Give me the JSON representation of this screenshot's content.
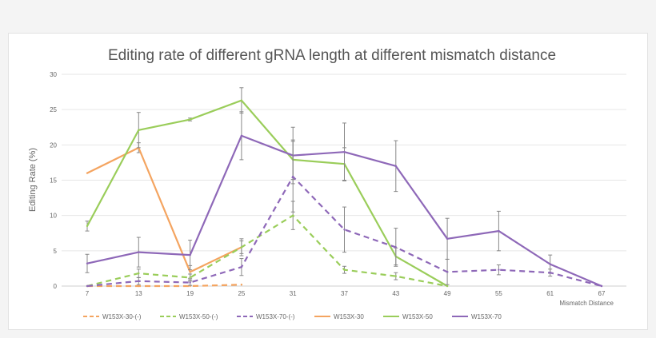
{
  "chart_data": {
    "type": "line",
    "title": "Editing rate of different gRNA length at different mismatch distance",
    "xlabel": "Mismatch Distance",
    "ylabel": "Editing Rate (%)",
    "ylim": [
      0,
      30
    ],
    "yticks": [
      "0",
      "5",
      "10",
      "15",
      "20",
      "25",
      "30"
    ],
    "categories": [
      "7",
      "13",
      "19",
      "25",
      "31",
      "37",
      "43",
      "49",
      "55",
      "61",
      "67"
    ],
    "grid": true,
    "legend_position": "bottom",
    "series": [
      {
        "name": "W153X-30-(-)",
        "color": "#f4a460",
        "dashed": true,
        "values": [
          0,
          0,
          0,
          0.2,
          null,
          null,
          null,
          null,
          null,
          null,
          null
        ],
        "errors": [
          0,
          0,
          0,
          0,
          null,
          null,
          null,
          null,
          null,
          null,
          null
        ]
      },
      {
        "name": "W153X-50-(-)",
        "color": "#9acd5a",
        "dashed": true,
        "values": [
          0,
          1.8,
          1.2,
          5.5,
          10,
          2.3,
          1.4,
          0,
          null,
          null,
          null
        ],
        "errors": [
          0,
          0.6,
          0.5,
          1.2,
          2,
          0.5,
          0.5,
          0,
          null,
          null,
          null
        ]
      },
      {
        "name": "W153X-70-(-)",
        "color": "#8e68b8",
        "dashed": true,
        "values": [
          0,
          0.7,
          0.5,
          2.7,
          15.5,
          8,
          5.5,
          2,
          2.3,
          1.9,
          0
        ],
        "errors": [
          0,
          0.5,
          0.4,
          1.2,
          5,
          3.2,
          2.7,
          1.8,
          0.7,
          0.5,
          0
        ]
      },
      {
        "name": "W153X-30",
        "color": "#f4a460",
        "dashed": false,
        "values": [
          16,
          19.6,
          2,
          5.5,
          null,
          null,
          null,
          null,
          null,
          null,
          null
        ],
        "errors": [
          0,
          0.7,
          0.9,
          0.9,
          null,
          null,
          null,
          null,
          null,
          null,
          null
        ]
      },
      {
        "name": "W153X-50",
        "color": "#9acd5a",
        "dashed": false,
        "values": [
          8.5,
          22.1,
          23.6,
          26.3,
          17.9,
          17.3,
          4.2,
          0,
          null,
          null,
          null
        ],
        "errors": [
          0.7,
          2.5,
          0.2,
          1.8,
          2.8,
          2.3,
          1.2,
          0,
          null,
          null,
          null
        ]
      },
      {
        "name": "W153X-70",
        "color": "#8e68b8",
        "dashed": false,
        "values": [
          3.2,
          4.8,
          4.4,
          21.3,
          18.5,
          19,
          17,
          6.7,
          7.8,
          3.1,
          0
        ],
        "errors": [
          1.3,
          2.1,
          2.1,
          3.4,
          4,
          4.1,
          3.6,
          2.9,
          2.8,
          1.3,
          0
        ]
      }
    ]
  }
}
